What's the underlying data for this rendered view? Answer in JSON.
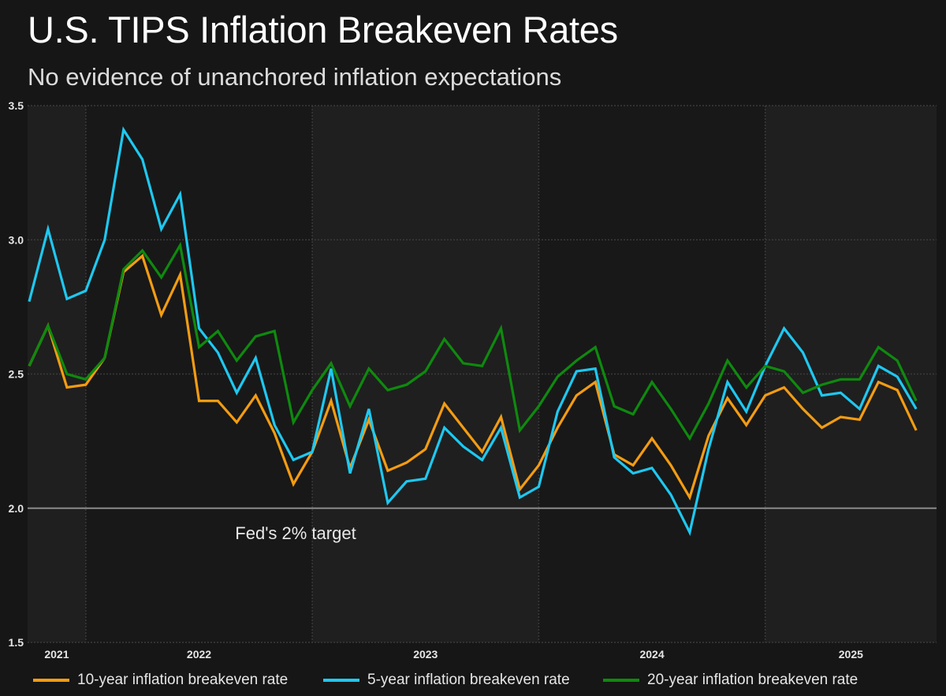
{
  "chart_data": {
    "type": "line",
    "title": "U.S. TIPS Inflation Breakeven Rates",
    "subtitle": "No evidence of unanchored inflation expectations",
    "xlabel": "",
    "ylabel": "",
    "ylim": [
      1.5,
      3.5
    ],
    "yticks": [
      1.5,
      2.0,
      2.5,
      3.0,
      3.5
    ],
    "ytick_labels": [
      "1.5",
      "2.0",
      "2.5",
      "3.0",
      "3.5"
    ],
    "x_start": "2021-10",
    "x_frequency": "monthly",
    "x_year_labels": [
      "2021",
      "2022",
      "2023",
      "2024",
      "2025"
    ],
    "grid": true,
    "legend_position": "bottom",
    "reference_line": {
      "value": 2.0,
      "label": "Fed's 2% target"
    },
    "series": [
      {
        "name": "10-year inflation breakeven rate",
        "color": "#f39c12",
        "values": [
          2.53,
          2.68,
          2.45,
          2.46,
          2.56,
          2.88,
          2.94,
          2.72,
          2.87,
          2.4,
          2.4,
          2.32,
          2.42,
          2.28,
          2.09,
          2.21,
          2.4,
          2.15,
          2.33,
          2.14,
          2.17,
          2.22,
          2.39,
          2.3,
          2.21,
          2.34,
          2.07,
          2.16,
          2.3,
          2.42,
          2.47,
          2.2,
          2.16,
          2.26,
          2.16,
          2.04,
          2.27,
          2.41,
          2.31,
          2.42,
          2.45,
          2.37,
          2.3,
          2.34,
          2.33,
          2.47,
          2.44,
          2.29
        ]
      },
      {
        "name": "5-year inflation breakeven rate",
        "color": "#1ec8f0",
        "values": [
          2.77,
          3.04,
          2.78,
          2.81,
          3.0,
          3.41,
          3.3,
          3.04,
          3.17,
          2.67,
          2.58,
          2.43,
          2.56,
          2.31,
          2.18,
          2.21,
          2.52,
          2.13,
          2.37,
          2.02,
          2.1,
          2.11,
          2.3,
          2.23,
          2.18,
          2.3,
          2.04,
          2.08,
          2.36,
          2.51,
          2.52,
          2.19,
          2.13,
          2.15,
          2.05,
          1.91,
          2.22,
          2.47,
          2.36,
          2.53,
          2.67,
          2.58,
          2.42,
          2.43,
          2.37,
          2.53,
          2.49,
          2.37
        ]
      },
      {
        "name": "20-year inflation breakeven rate",
        "color": "#0e8a0e",
        "values": [
          2.53,
          2.68,
          2.5,
          2.48,
          2.56,
          2.89,
          2.96,
          2.86,
          2.98,
          2.6,
          2.66,
          2.55,
          2.64,
          2.66,
          2.32,
          2.44,
          2.54,
          2.38,
          2.52,
          2.44,
          2.46,
          2.51,
          2.63,
          2.54,
          2.53,
          2.67,
          2.29,
          2.38,
          2.49,
          2.55,
          2.6,
          2.38,
          2.35,
          2.47,
          2.37,
          2.26,
          2.39,
          2.55,
          2.45,
          2.53,
          2.51,
          2.43,
          2.46,
          2.48,
          2.48,
          2.6,
          2.55,
          2.4
        ]
      }
    ]
  },
  "colors": {
    "background": "#161616",
    "band_light": "#1f1f1f",
    "band_dark": "#181818",
    "gridline": "#3a3a3a",
    "reference_line": "#8a8a8a",
    "tick_text": "#e6e6e6"
  }
}
